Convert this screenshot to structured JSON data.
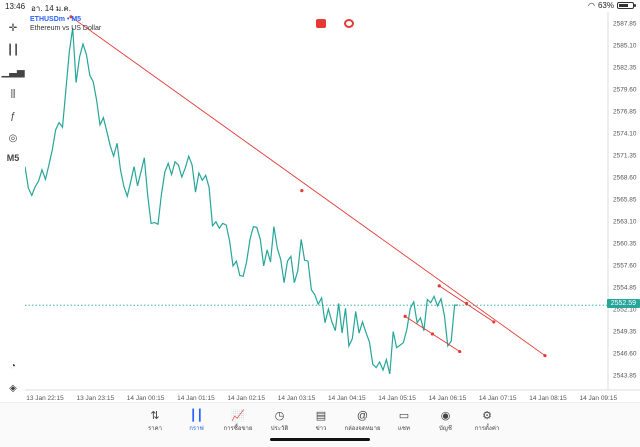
{
  "status": {
    "time": "13:46",
    "date": "อา. 14 ม.ค.",
    "battery": "63%",
    "battery_level": 0.63
  },
  "legend": {
    "symbol": "ETHUSDm • M5",
    "description": "Ethereum vs US Dollar"
  },
  "toolbar": {
    "tools": [
      "crosshair-icon",
      "candles-icon",
      "bars-icon",
      "indicators-icon",
      "function-icon",
      "shapes-icon"
    ],
    "timeframe": "M5"
  },
  "chart_data": {
    "type": "line",
    "symbol": "ETHUSDm",
    "timeframe": "M5",
    "y_ticks": [
      "2587.85",
      "2585.10",
      "2582.35",
      "2579.60",
      "2576.85",
      "2574.10",
      "2571.35",
      "2568.60",
      "2565.85",
      "2563.10",
      "2560.35",
      "2557.60",
      "2554.85",
      "2552.10",
      "2549.35",
      "2546.60",
      "2543.85"
    ],
    "x_ticks": [
      "13 Jan 22:15",
      "13 Jan 23:15",
      "14 Jan 00:15",
      "14 Jan 01:15",
      "14 Jan 02:15",
      "14 Jan 03:15",
      "14 Jan 04:15",
      "14 Jan 05:15",
      "14 Jan 06:15",
      "14 Jan 07:15",
      "14 Jan 08:15",
      "14 Jan 09:15"
    ],
    "current_price": "2552.59",
    "line_color": "#26a69a",
    "trendline_color": "#e53935",
    "prices": [
      2569.9,
      2567.2,
      2566.3,
      2567.4,
      2568.1,
      2569.5,
      2568.3,
      2570.1,
      2572.0,
      2574.5,
      2575.4,
      2574.8,
      2579.5,
      2584.2,
      2587.2,
      2580.4,
      2583.6,
      2585.2,
      2583.9,
      2581.3,
      2580.5,
      2578.2,
      2575.1,
      2576.0,
      2574.3,
      2572.5,
      2571.2,
      2572.8,
      2569.5,
      2567.4,
      2566.2,
      2568.0,
      2569.9,
      2567.5,
      2569.2,
      2571.0,
      2566.3,
      2562.8,
      2562.9,
      2562.7,
      2566.4,
      2569.2,
      2570.3,
      2568.9,
      2570.5,
      2570.1,
      2568.6,
      2569.7,
      2571.2,
      2570.1,
      2566.7,
      2569.1,
      2568.2,
      2568.8,
      2567.3,
      2562.5,
      2563.0,
      2562.2,
      2562.8,
      2562.6,
      2560.6,
      2557.5,
      2558.1,
      2556.3,
      2556.2,
      2558.0,
      2560.8,
      2562.4,
      2562.3,
      2560.8,
      2557.5,
      2559.5,
      2558.0,
      2562.4,
      2559.7,
      2558.3,
      2555.4,
      2558.1,
      2558.7,
      2555.4,
      2556.9,
      2560.8,
      2558.2,
      2558.1,
      2554.5,
      2553.9,
      2552.7,
      2553.5,
      2550.4,
      2552.1,
      2550.5,
      2549.4,
      2552.8,
      2549.1,
      2552.2,
      2547.5,
      2548.4,
      2551.8,
      2549.1,
      2550.5,
      2549.2,
      2548.0,
      2545.2,
      2544.8,
      2545.5,
      2544.5,
      2545.8,
      2544.0,
      2549.3,
      2547.3,
      2547.6,
      2547.9,
      2549.6,
      2552.2,
      2553.0,
      2550.4,
      2551.0,
      2549.4,
      2553.3,
      2552.9,
      2553.7,
      2552.5,
      2553.4,
      2551.3,
      2547.5,
      2548.1,
      2552.6,
      2552.6
    ]
  },
  "tabs": [
    {
      "icon": "sort-icon",
      "label": "ราคา"
    },
    {
      "icon": "candles-icon",
      "label": "กราฟ"
    },
    {
      "icon": "trade-icon",
      "label": "การซื้อขาย"
    },
    {
      "icon": "history-icon",
      "label": "ประวัติ"
    },
    {
      "icon": "news-icon",
      "label": "ข่าว"
    },
    {
      "icon": "mail-icon",
      "label": "กล่องจดหมาย"
    },
    {
      "icon": "chat-icon",
      "label": "แชท"
    },
    {
      "icon": "account-icon",
      "label": "บัญชี"
    },
    {
      "icon": "settings-icon",
      "label": "การตั้งค่า"
    }
  ],
  "active_tab": 1
}
